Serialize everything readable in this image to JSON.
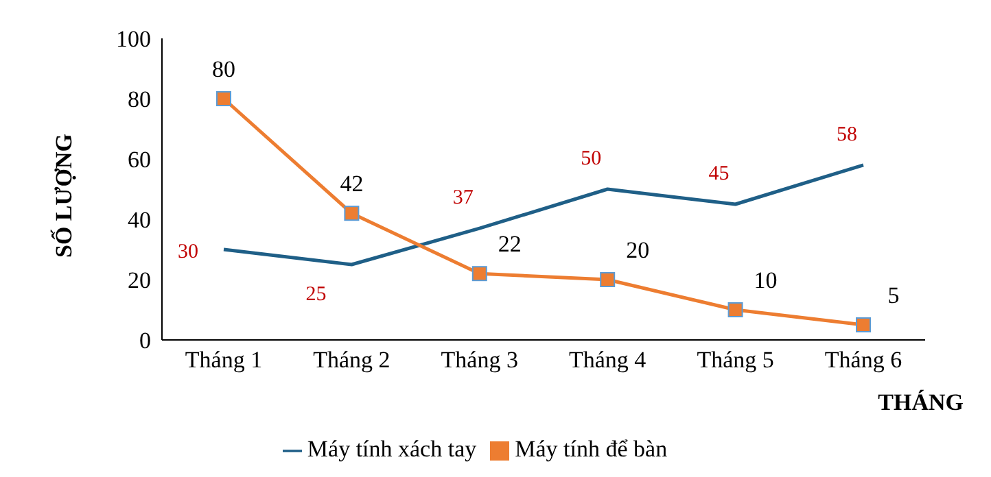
{
  "chart_data": {
    "type": "line",
    "xlabel": "THÁNG",
    "ylabel": "SỐ LƯỢNG",
    "categories": [
      "Tháng 1",
      "Tháng 2",
      "Tháng 3",
      "Tháng 4",
      "Tháng 5",
      "Tháng 6"
    ],
    "series": [
      {
        "name": "Máy tính xách tay",
        "color": "#1f5f87",
        "values": [
          30,
          25,
          37,
          50,
          45,
          58
        ],
        "marker": "none"
      },
      {
        "name": "Máy tính để bàn",
        "color": "#ed7d31",
        "values": [
          80,
          42,
          22,
          20,
          10,
          5
        ],
        "marker": "square"
      }
    ],
    "ylim": [
      0,
      100
    ],
    "yticks": [
      0,
      20,
      40,
      60,
      80,
      100
    ],
    "legend": "bottom",
    "data_labels": true,
    "line_style": "solid"
  }
}
